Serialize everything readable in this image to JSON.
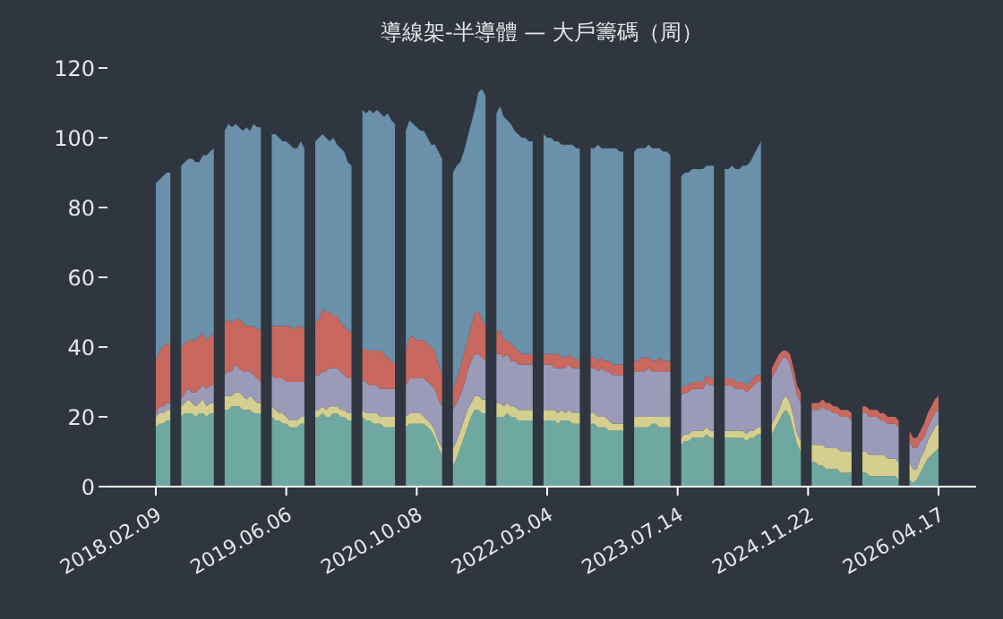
{
  "chart_data": {
    "type": "area",
    "stacked": true,
    "title": "導線架-半導體 — 大戶籌碼（周）",
    "categories": [
      "2018.02.09",
      null,
      null,
      null,
      null,
      null,
      null,
      null,
      null,
      null,
      null,
      null,
      null,
      null,
      null,
      null,
      null,
      null,
      null,
      null,
      null,
      null,
      null,
      null,
      null,
      null,
      null,
      null,
      null,
      null,
      null,
      null,
      null,
      null,
      null,
      null,
      "2019.06.06",
      null,
      null,
      null,
      null,
      null,
      null,
      null,
      null,
      null,
      null,
      null,
      null,
      null,
      null,
      null,
      null,
      null,
      null,
      null,
      null,
      null,
      null,
      null,
      null,
      null,
      null,
      null,
      null,
      null,
      null,
      null,
      null,
      null,
      null,
      null,
      "2020.10.08",
      null,
      null,
      null,
      null,
      null,
      null,
      null,
      null,
      null,
      null,
      null,
      null,
      null,
      null,
      null,
      null,
      null,
      null,
      null,
      null,
      null,
      null,
      null,
      null,
      null,
      null,
      null,
      null,
      null,
      null,
      null,
      null,
      null,
      null,
      null,
      "2022.03.04",
      null,
      null,
      null,
      null,
      null,
      null,
      null,
      null,
      null,
      null,
      null,
      null,
      null,
      null,
      null,
      null,
      null,
      null,
      null,
      null,
      null,
      null,
      null,
      null,
      null,
      null,
      null,
      null,
      null,
      null,
      null,
      null,
      null,
      null,
      null,
      "2023.07.14",
      null,
      null,
      null,
      null,
      null,
      null,
      null,
      null,
      null,
      null,
      null,
      null,
      null,
      null,
      null,
      null,
      null,
      null,
      null,
      null,
      null,
      null,
      null,
      null,
      null,
      null,
      null,
      null,
      null,
      null,
      null,
      null,
      null,
      null,
      null,
      "2024.11.22",
      null,
      null,
      null,
      null,
      null,
      null,
      null,
      null,
      null,
      null,
      null,
      null,
      null,
      null,
      null,
      null,
      null,
      null,
      null,
      null,
      null,
      null,
      null,
      null,
      null,
      null,
      null,
      null,
      null,
      null,
      null,
      null,
      null,
      null,
      null,
      "2026.04.17"
    ],
    "series": [
      {
        "color": "#6fa8a0",
        "values": [
          17,
          18,
          18,
          19,
          19,
          null,
          null,
          20,
          21,
          21,
          21,
          20,
          21,
          21,
          20,
          21,
          21,
          null,
          null,
          22,
          22,
          23,
          23,
          23,
          22,
          22,
          22,
          21,
          21,
          21,
          null,
          null,
          20,
          19,
          19,
          18,
          18,
          17,
          17,
          17,
          18,
          18,
          null,
          null,
          20,
          20,
          21,
          20,
          20,
          21,
          21,
          20,
          20,
          19,
          19,
          null,
          null,
          20,
          19,
          19,
          18,
          18,
          18,
          17,
          17,
          17,
          17,
          null,
          null,
          17,
          18,
          18,
          18,
          18,
          18,
          17,
          16,
          14,
          11,
          9,
          null,
          null,
          6,
          8,
          11,
          14,
          17,
          20,
          22,
          22,
          21,
          21,
          null,
          null,
          20,
          20,
          20,
          21,
          20,
          20,
          19,
          19,
          19,
          19,
          19,
          null,
          null,
          19,
          19,
          19,
          19,
          18,
          19,
          19,
          19,
          18,
          18,
          18,
          null,
          null,
          18,
          18,
          17,
          17,
          17,
          16,
          16,
          16,
          16,
          16,
          null,
          null,
          17,
          17,
          17,
          17,
          17,
          18,
          18,
          17,
          17,
          17,
          17,
          null,
          null,
          12,
          13,
          13,
          14,
          14,
          14,
          14,
          15,
          14,
          14,
          null,
          null,
          14,
          14,
          14,
          14,
          14,
          14,
          13,
          14,
          14,
          15,
          15,
          null,
          null,
          15,
          17,
          19,
          21,
          22,
          20,
          16,
          12,
          10,
          null,
          null,
          7,
          7,
          6,
          6,
          5,
          5,
          5,
          5,
          4,
          4,
          4,
          4,
          null,
          null,
          4,
          4,
          3,
          3,
          3,
          3,
          3,
          3,
          3,
          3,
          2,
          null,
          null,
          2,
          1,
          2,
          4,
          6,
          8,
          9,
          10,
          11
        ]
      },
      {
        "color": "#d4cf8e",
        "values": [
          3,
          3,
          3,
          3,
          3,
          null,
          null,
          3,
          3,
          4,
          3,
          3,
          3,
          4,
          3,
          3,
          3,
          null,
          null,
          4,
          4,
          3,
          4,
          4,
          4,
          3,
          4,
          4,
          3,
          3,
          null,
          null,
          3,
          3,
          2,
          3,
          2,
          2,
          2,
          2,
          2,
          2,
          null,
          null,
          2,
          2,
          2,
          2,
          3,
          2,
          2,
          2,
          2,
          2,
          2,
          null,
          null,
          2,
          2,
          2,
          3,
          3,
          2,
          3,
          3,
          3,
          3,
          null,
          null,
          3,
          3,
          3,
          3,
          3,
          2,
          2,
          2,
          2,
          2,
          2,
          null,
          null,
          5,
          5,
          5,
          5,
          5,
          4,
          4,
          4,
          4,
          4,
          null,
          null,
          4,
          4,
          3,
          3,
          3,
          3,
          3,
          3,
          3,
          3,
          3,
          null,
          null,
          3,
          3,
          3,
          3,
          3,
          3,
          2,
          3,
          3,
          3,
          3,
          null,
          null,
          3,
          3,
          3,
          3,
          3,
          3,
          2,
          2,
          2,
          2,
          null,
          null,
          3,
          3,
          3,
          3,
          3,
          2,
          2,
          3,
          3,
          3,
          3,
          null,
          null,
          2,
          2,
          2,
          2,
          2,
          2,
          2,
          2,
          2,
          2,
          null,
          null,
          2,
          2,
          2,
          2,
          2,
          2,
          2,
          2,
          2,
          2,
          2,
          null,
          null,
          3,
          3,
          3,
          4,
          4,
          4,
          4,
          3,
          3,
          null,
          null,
          5,
          5,
          6,
          6,
          6,
          6,
          6,
          6,
          6,
          6,
          6,
          6,
          null,
          null,
          6,
          6,
          6,
          6,
          6,
          6,
          6,
          5,
          5,
          5,
          5,
          null,
          null,
          5,
          4,
          3,
          4,
          4,
          5,
          6,
          7,
          7
        ]
      },
      {
        "color": "#9b9ab8",
        "values": [
          1,
          2,
          2,
          2,
          2,
          null,
          null,
          2,
          3,
          3,
          3,
          4,
          4,
          4,
          5,
          5,
          5,
          null,
          null,
          6,
          7,
          7,
          8,
          7,
          7,
          8,
          7,
          7,
          7,
          6,
          null,
          null,
          9,
          9,
          10,
          10,
          10,
          11,
          11,
          11,
          10,
          10,
          null,
          null,
          10,
          10,
          10,
          11,
          11,
          11,
          11,
          11,
          10,
          10,
          10,
          null,
          null,
          8,
          9,
          8,
          8,
          8,
          8,
          8,
          8,
          8,
          8,
          null,
          null,
          9,
          10,
          10,
          10,
          10,
          11,
          11,
          11,
          12,
          12,
          12,
          null,
          null,
          11,
          11,
          10,
          10,
          11,
          12,
          12,
          12,
          12,
          11,
          null,
          null,
          14,
          14,
          14,
          14,
          13,
          13,
          13,
          13,
          13,
          13,
          13,
          null,
          null,
          13,
          13,
          13,
          12,
          13,
          12,
          13,
          13,
          13,
          13,
          13,
          null,
          null,
          13,
          13,
          13,
          14,
          13,
          14,
          14,
          14,
          14,
          14,
          null,
          null,
          13,
          13,
          13,
          13,
          14,
          13,
          13,
          13,
          13,
          13,
          13,
          null,
          null,
          12,
          12,
          12,
          12,
          12,
          12,
          12,
          13,
          13,
          13,
          null,
          null,
          13,
          13,
          13,
          12,
          12,
          12,
          12,
          12,
          13,
          13,
          13,
          null,
          null,
          13,
          13,
          13,
          12,
          11,
          11,
          11,
          11,
          11,
          null,
          null,
          10,
          10,
          10,
          11,
          11,
          11,
          10,
          10,
          10,
          10,
          10,
          9,
          null,
          null,
          11,
          11,
          11,
          11,
          11,
          10,
          10,
          10,
          10,
          10,
          10,
          null,
          null,
          6,
          6,
          6,
          5,
          4,
          4,
          4,
          4,
          4
        ]
      },
      {
        "color": "#c8685e",
        "values": [
          15,
          16,
          17,
          17,
          17,
          null,
          null,
          15,
          14,
          14,
          15,
          15,
          15,
          15,
          14,
          14,
          15,
          null,
          null,
          15,
          15,
          14,
          13,
          14,
          14,
          13,
          13,
          14,
          14,
          15,
          null,
          null,
          14,
          15,
          15,
          15,
          16,
          16,
          15,
          16,
          16,
          15,
          null,
          null,
          15,
          16,
          18,
          17,
          16,
          15,
          15,
          14,
          14,
          14,
          13,
          null,
          null,
          10,
          9,
          10,
          10,
          10,
          11,
          10,
          9,
          8,
          7,
          null,
          null,
          10,
          12,
          12,
          11,
          11,
          11,
          11,
          11,
          11,
          10,
          9,
          null,
          null,
          6,
          7,
          8,
          9,
          9,
          10,
          12,
          12,
          11,
          10,
          null,
          null,
          6,
          7,
          5,
          4,
          5,
          4,
          4,
          3,
          3,
          3,
          3,
          null,
          null,
          3,
          3,
          3,
          4,
          4,
          3,
          3,
          3,
          3,
          2,
          3,
          null,
          null,
          3,
          3,
          3,
          3,
          3,
          3,
          3,
          3,
          3,
          3,
          null,
          null,
          3,
          3,
          4,
          4,
          3,
          3,
          3,
          4,
          3,
          3,
          3,
          null,
          null,
          2,
          2,
          2,
          2,
          2,
          2,
          2,
          2,
          2,
          2,
          null,
          null,
          2,
          2,
          2,
          2,
          2,
          2,
          2,
          2,
          2,
          2,
          2,
          null,
          null,
          3,
          3,
          3,
          2,
          2,
          3,
          3,
          3,
          3,
          null,
          null,
          2,
          2,
          2,
          2,
          2,
          2,
          2,
          2,
          2,
          2,
          2,
          2,
          null,
          null,
          2,
          2,
          2,
          2,
          2,
          2,
          2,
          2,
          2,
          2,
          2,
          null,
          null,
          3,
          3,
          3,
          3,
          4,
          4,
          4,
          4,
          4
        ]
      },
      {
        "color": "#6a90aa",
        "values": [
          51,
          49,
          49,
          49,
          49,
          null,
          null,
          52,
          52,
          52,
          52,
          51,
          50,
          51,
          53,
          53,
          53,
          null,
          null,
          55,
          56,
          56,
          56,
          55,
          55,
          57,
          56,
          58,
          58,
          58,
          null,
          null,
          55,
          55,
          54,
          53,
          53,
          52,
          52,
          51,
          53,
          52,
          null,
          null,
          52,
          52,
          50,
          50,
          49,
          51,
          49,
          50,
          50,
          48,
          48,
          null,
          null,
          68,
          68,
          69,
          68,
          69,
          68,
          68,
          70,
          69,
          69,
          null,
          null,
          63,
          62,
          61,
          61,
          60,
          60,
          59,
          58,
          59,
          61,
          62,
          null,
          null,
          62,
          61,
          59,
          58,
          58,
          58,
          58,
          63,
          66,
          66,
          null,
          null,
          63,
          64,
          64,
          63,
          63,
          62,
          62,
          62,
          62,
          61,
          61,
          null,
          null,
          63,
          62,
          62,
          61,
          61,
          61,
          61,
          60,
          61,
          61,
          60,
          null,
          null,
          60,
          60,
          62,
          60,
          61,
          61,
          62,
          62,
          61,
          61,
          null,
          null,
          60,
          61,
          60,
          60,
          61,
          61,
          61,
          60,
          60,
          60,
          59,
          null,
          null,
          61,
          61,
          61,
          61,
          61,
          61,
          61,
          60,
          61,
          61,
          null,
          null,
          60,
          60,
          61,
          61,
          61,
          62,
          63,
          63,
          64,
          65,
          67,
          null,
          null,
          null,
          null,
          null,
          null,
          null,
          null,
          null,
          null,
          null,
          null,
          null,
          null,
          null,
          null,
          null,
          null,
          null,
          null,
          null,
          null,
          null,
          null,
          null,
          null,
          null,
          null,
          null,
          null,
          null,
          null,
          null,
          null,
          null,
          null,
          null,
          null,
          null,
          null,
          null,
          null,
          null,
          null,
          null,
          null,
          null,
          null,
          null
        ]
      }
    ],
    "ylim": [
      0,
      120
    ],
    "yticks": [
      0,
      20,
      40,
      60,
      80,
      100,
      120
    ]
  }
}
